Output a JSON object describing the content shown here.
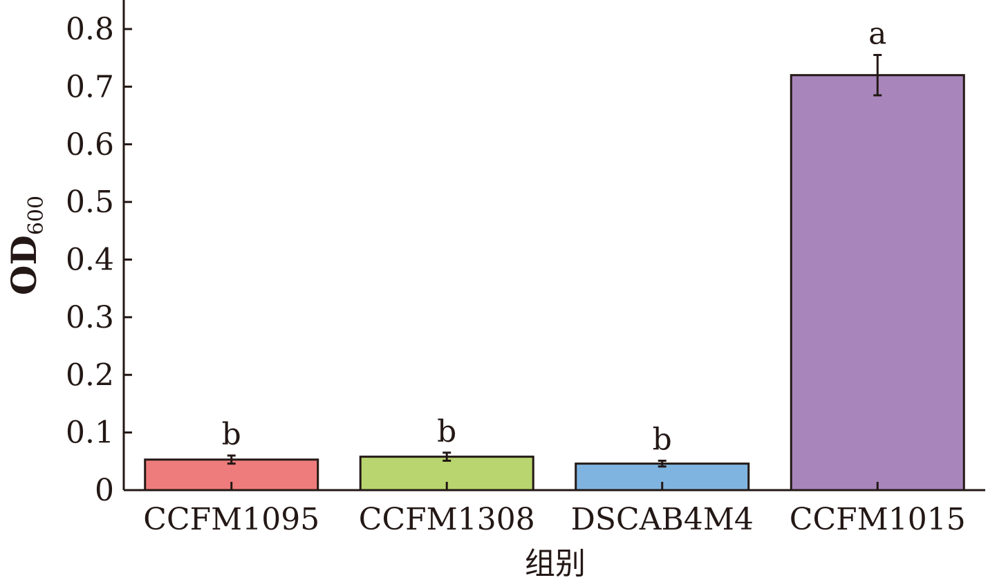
{
  "chart_data": {
    "type": "bar",
    "categories": [
      "CCFM1095",
      "CCFM1308",
      "DSCAB4M4",
      "CCFM1015"
    ],
    "values": [
      0.053,
      0.058,
      0.046,
      0.72
    ],
    "errors": [
      0.007,
      0.007,
      0.005,
      0.035
    ],
    "significance": [
      "b",
      "b",
      "b",
      "a"
    ],
    "colors": [
      "#ef7c7c",
      "#b8d56f",
      "#80b4e0",
      "#a886bb"
    ],
    "ylabel_main": "OD",
    "ylabel_sub": "600",
    "xlabel": "组别",
    "ylim": [
      0,
      0.85
    ],
    "yticks": [
      0,
      0.1,
      0.2,
      0.3,
      0.4,
      0.5,
      0.6,
      0.7,
      0.8
    ],
    "ytick_labels": [
      "0",
      "0.1",
      "0.2",
      "0.3",
      "0.4",
      "0.5",
      "0.6",
      "0.7",
      "0.8"
    ]
  }
}
